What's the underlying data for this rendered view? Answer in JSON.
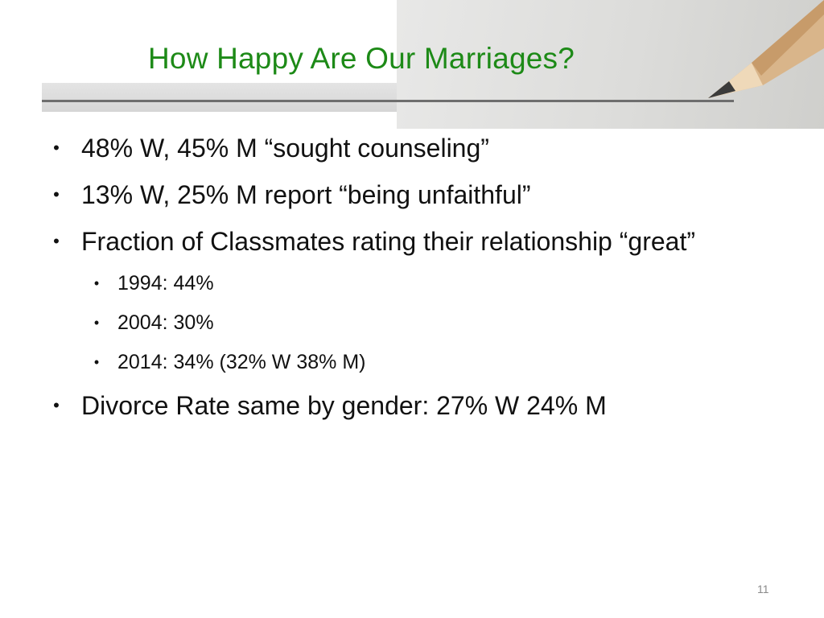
{
  "slide": {
    "title": "How Happy Are Our Marriages?",
    "bullets": [
      "48% W, 45% M “sought counseling”",
      "13% W, 25% M report “being unfaithful”",
      "Fraction of Classmates rating their relationship “great”"
    ],
    "sub_bullets": [
      "1994: 44%",
      "2004: 30%",
      "2014: 34% (32% W 38% M)"
    ],
    "final_bullet": "Divorce Rate same by gender: 27% W 24% M",
    "bullet_symbol": "•",
    "slide_number": "11"
  },
  "colors": {
    "title": "#1d8a17",
    "text": "#111111",
    "rule": "#6e6e6e"
  },
  "icons": {
    "header_image": "pencil-icon"
  }
}
